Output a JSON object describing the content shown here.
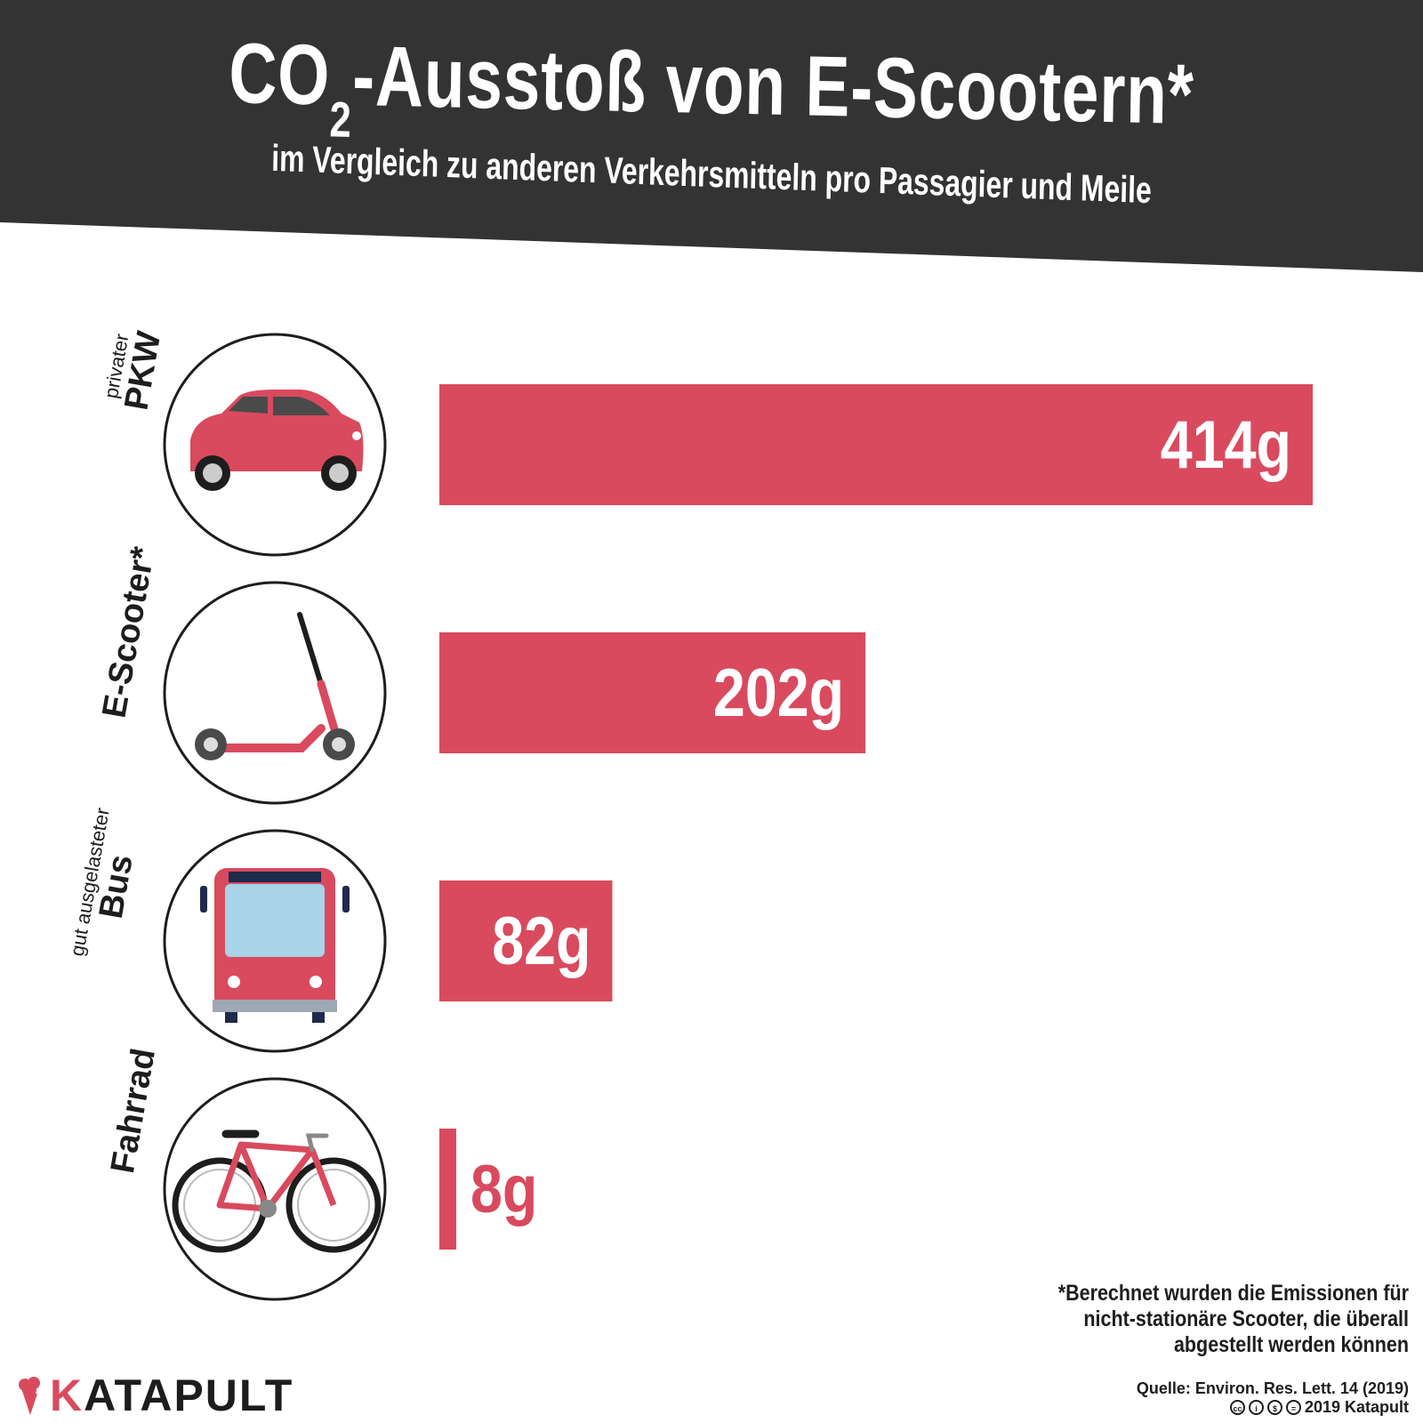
{
  "header": {
    "title_main": "CO",
    "title_sub": "2",
    "title_rest": "-Ausstoß von E-Scootern*",
    "subtitle": "im Vergleich zu anderen Verkehrsmitteln pro Passagier und Meile"
  },
  "colors": {
    "header_bg": "#333333",
    "bar": "#d94a5e",
    "text_dark": "#1d1d1b",
    "bar_label": "#ffffff"
  },
  "chart_data": {
    "type": "bar",
    "orientation": "horizontal",
    "categories": [
      "privater PKW",
      "E-Scooter*",
      "gut ausgelasteter Bus",
      "Fahrrad"
    ],
    "category_labels": [
      {
        "pre": "privater",
        "main": "PKW"
      },
      {
        "pre": "",
        "main": "E-Scooter*"
      },
      {
        "pre": "gut ausgelasteter",
        "main": "Bus"
      },
      {
        "pre": "",
        "main": "Fahrrad"
      }
    ],
    "icons": [
      "car-icon",
      "e-scooter-icon",
      "bus-icon",
      "bicycle-icon"
    ],
    "values": [
      414,
      202,
      82,
      8
    ],
    "value_labels": [
      "414g",
      "202g",
      "82g",
      "8g"
    ],
    "unit": "g",
    "xlim": [
      0,
      414
    ],
    "grid": false,
    "legend": "none"
  },
  "footnote": "*Berechnet wurden die Emissionen für nicht-stationäre Scooter, die überall abgestellt werden können",
  "source": "Quelle: Environ. Res. Lett. 14 (2019)",
  "copyright": "2019 Katapult",
  "logo": {
    "first_letter": "K",
    "rest": "ATAPULT"
  }
}
